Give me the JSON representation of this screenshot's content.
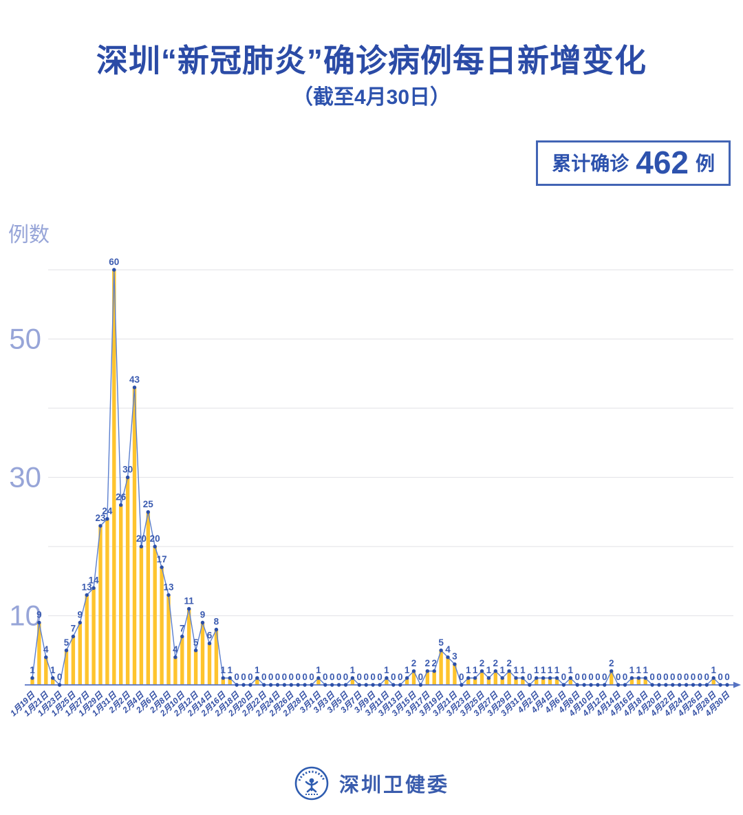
{
  "title": "深圳“新冠肺炎”确诊病例每日新增变化",
  "subtitle": "（截至4月30日）",
  "badge": {
    "prefix": "累计确诊",
    "value": "462",
    "suffix": "例"
  },
  "y_axis_unit": "例数",
  "footer": {
    "org": "深圳卫健委",
    "logo": "shenzhen-health-commission-seal"
  },
  "colors": {
    "title_blue": "#2b4ba6",
    "subtitle_blue": "#2d52ad",
    "badge_border": "#4264b4",
    "bar_yellow": "#fec42e",
    "line_blue": "#5b7fce",
    "dot_blue": "#2b4fa8",
    "value_label_blue": "#3b5bb0",
    "x_label_blue": "#3450a5",
    "y_label_light": "#97a5d8",
    "gridline_gray": "#e6e6ea",
    "axis_blue": "#5673c2"
  },
  "chart_data": {
    "type": "bar",
    "overlay": "line-with-markers",
    "title": "深圳“新冠肺炎”确诊病例每日新增变化",
    "xlabel": "",
    "ylabel": "例数",
    "ylim": [
      0,
      62
    ],
    "grid": true,
    "gridline_values": [
      10,
      20,
      30,
      40,
      50,
      60
    ],
    "y_ticks": [
      10,
      30,
      50
    ],
    "x_tick_every": 2,
    "total_confirmed": 462,
    "dates": [
      "1月19日",
      "1月20日",
      "1月21日",
      "1月22日",
      "1月23日",
      "1月24日",
      "1月25日",
      "1月26日",
      "1月27日",
      "1月28日",
      "1月29日",
      "1月30日",
      "1月31日",
      "2月1日",
      "2月2日",
      "2月3日",
      "2月4日",
      "2月5日",
      "2月6日",
      "2月7日",
      "2月8日",
      "2月9日",
      "2月10日",
      "2月11日",
      "2月12日",
      "2月13日",
      "2月14日",
      "2月15日",
      "2月16日",
      "2月17日",
      "2月18日",
      "2月19日",
      "2月20日",
      "2月21日",
      "2月22日",
      "2月23日",
      "2月24日",
      "2月25日",
      "2月26日",
      "2月27日",
      "2月28日",
      "2月29日",
      "3月1日",
      "3月2日",
      "3月3日",
      "3月4日",
      "3月5日",
      "3月6日",
      "3月7日",
      "3月8日",
      "3月9日",
      "3月10日",
      "3月11日",
      "3月12日",
      "3月13日",
      "3月14日",
      "3月15日",
      "3月16日",
      "3月17日",
      "3月18日",
      "3月19日",
      "3月20日",
      "3月21日",
      "3月22日",
      "3月23日",
      "3月24日",
      "3月25日",
      "3月26日",
      "3月27日",
      "3月28日",
      "3月29日",
      "3月30日",
      "3月31日",
      "4月1日",
      "4月2日",
      "4月3日",
      "4月4日",
      "4月5日",
      "4月6日",
      "4月7日",
      "4月8日",
      "4月9日",
      "4月10日",
      "4月11日",
      "4月12日",
      "4月13日",
      "4月14日",
      "4月15日",
      "4月16日",
      "4月17日",
      "4月18日",
      "4月19日",
      "4月20日",
      "4月21日",
      "4月22日",
      "4月23日",
      "4月24日",
      "4月25日",
      "4月26日",
      "4月27日",
      "4月28日",
      "4月29日",
      "4月30日"
    ],
    "values": [
      1,
      9,
      4,
      1,
      0,
      5,
      7,
      9,
      13,
      14,
      23,
      24,
      60,
      26,
      30,
      43,
      20,
      25,
      20,
      17,
      13,
      4,
      7,
      11,
      5,
      9,
      6,
      8,
      1,
      1,
      0,
      0,
      0,
      1,
      0,
      0,
      0,
      0,
      0,
      0,
      0,
      0,
      1,
      0,
      0,
      0,
      0,
      1,
      0,
      0,
      0,
      0,
      1,
      0,
      0,
      1,
      2,
      0,
      2,
      2,
      5,
      4,
      3,
      0,
      1,
      1,
      2,
      1,
      2,
      1,
      2,
      1,
      1,
      0,
      1,
      1,
      1,
      1,
      0,
      1,
      0,
      0,
      0,
      0,
      0,
      2,
      0,
      0,
      1,
      1,
      1,
      0,
      0,
      0,
      0,
      0,
      0,
      0,
      0,
      0,
      1,
      0,
      0
    ]
  }
}
